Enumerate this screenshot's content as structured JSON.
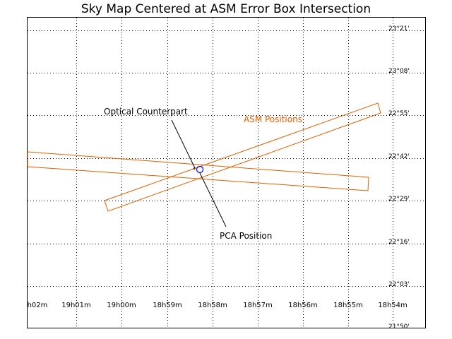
{
  "title": "Sky Map Centered at ASM Error Box Intersection",
  "ra_labels": [
    "h02m",
    "19h01m",
    "19h00m",
    "18h59m",
    "18h58m",
    "18h57m",
    "18h56m",
    "18h55m",
    "18h54m"
  ],
  "dec_labels": [
    "23°21'",
    "23°08'",
    "22°55'",
    "22°42'",
    "22°29'",
    "22°16'",
    "22°03'",
    "21°50'"
  ],
  "annotations": {
    "optical": "Optical Counterpart",
    "pca": "PCA Position",
    "asm": "ASM Positions"
  },
  "colors": {
    "asm": "#e06000",
    "pca_marker": "#0000cc",
    "grid": "#000000"
  }
}
